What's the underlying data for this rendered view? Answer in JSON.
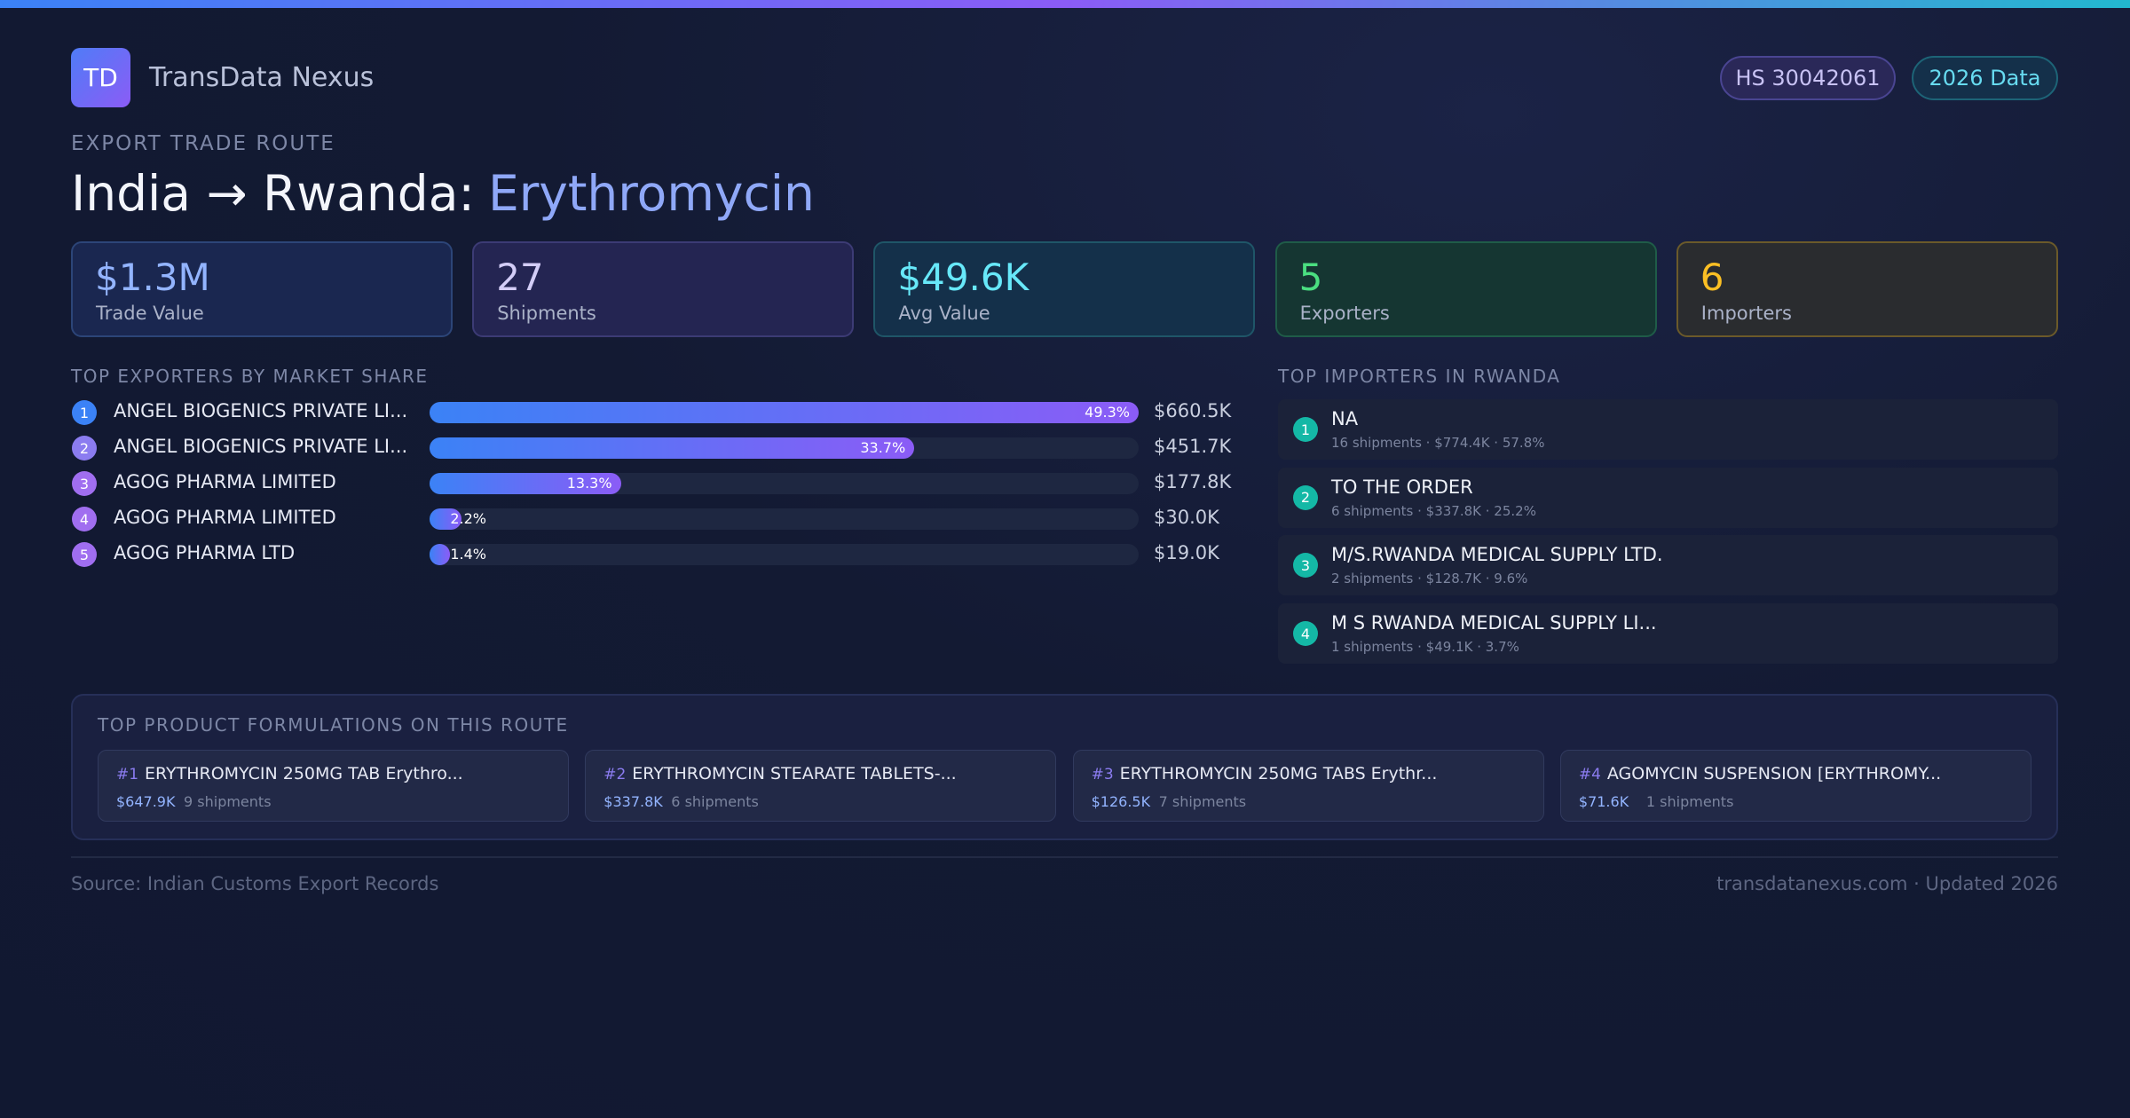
{
  "header": {
    "logo": "TD",
    "brand": "TransData Nexus",
    "badges": [
      "HS 30042061",
      "2026 Data"
    ]
  },
  "route": {
    "eyebrow": "EXPORT TRADE ROUTE",
    "title": "India → Rwanda:",
    "product": "Erythromycin"
  },
  "kpis": [
    {
      "value": "$1.3M",
      "label": "Trade Value"
    },
    {
      "value": "27",
      "label": "Shipments"
    },
    {
      "value": "$49.6K",
      "label": "Avg Value"
    },
    {
      "value": "5",
      "label": "Exporters"
    },
    {
      "value": "6",
      "label": "Importers"
    }
  ],
  "exporters": {
    "title": "TOP EXPORTERS BY MARKET SHARE",
    "rows": [
      {
        "rank": 1,
        "name": "ANGEL BIOGENICS PRIVATE LI...",
        "share": 49.3,
        "share_label": "49.3%",
        "value": "$660.5K"
      },
      {
        "rank": 2,
        "name": "ANGEL BIOGENICS PRIVATE LI...",
        "share": 33.7,
        "share_label": "33.7%",
        "value": "$451.7K"
      },
      {
        "rank": 3,
        "name": "AGOG PHARMA LIMITED",
        "share": 13.3,
        "share_label": "13.3%",
        "value": "$177.8K"
      },
      {
        "rank": 4,
        "name": "AGOG PHARMA LIMITED",
        "share": 2.2,
        "share_label": "2.2%",
        "value": "$30.0K"
      },
      {
        "rank": 5,
        "name": "AGOG PHARMA LTD",
        "share": 1.4,
        "share_label": "1.4%",
        "value": "$19.0K"
      }
    ]
  },
  "importers": {
    "title": "TOP IMPORTERS IN RWANDA",
    "rows": [
      {
        "rank": 1,
        "name": "NA",
        "detail": "16 shipments · $774.4K · 57.8%"
      },
      {
        "rank": 2,
        "name": "TO THE ORDER",
        "detail": "6 shipments · $337.8K · 25.2%"
      },
      {
        "rank": 3,
        "name": "M/S.RWANDA MEDICAL SUPPLY LTD.",
        "detail": "2 shipments · $128.7K · 9.6%"
      },
      {
        "rank": 4,
        "name": "M S RWANDA MEDICAL SUPPLY LI...",
        "detail": "1 shipments · $49.1K · 3.7%"
      }
    ]
  },
  "products": {
    "title": "TOP PRODUCT FORMULATIONS ON THIS ROUTE",
    "items": [
      {
        "rank": "#1",
        "name": "ERYTHROMYCIN 250MG TAB Erythro...",
        "value": "$647.9K",
        "shipments": "9 shipments"
      },
      {
        "rank": "#2",
        "name": "ERYTHROMYCIN STEARATE TABLETS-...",
        "value": "$337.8K",
        "shipments": "6 shipments"
      },
      {
        "rank": "#3",
        "name": "ERYTHROMYCIN 250MG TABS Erythr...",
        "value": "$126.5K",
        "shipments": "7 shipments"
      },
      {
        "rank": "#4",
        "name": "AGOMYCIN SUSPENSION [ERYTHROMY...",
        "value": "$71.6K",
        "shipments": "1 shipments"
      }
    ]
  },
  "footer": {
    "source": "Source: Indian Customs Export Records",
    "site": "transdatanexus.com · Updated 2026"
  }
}
